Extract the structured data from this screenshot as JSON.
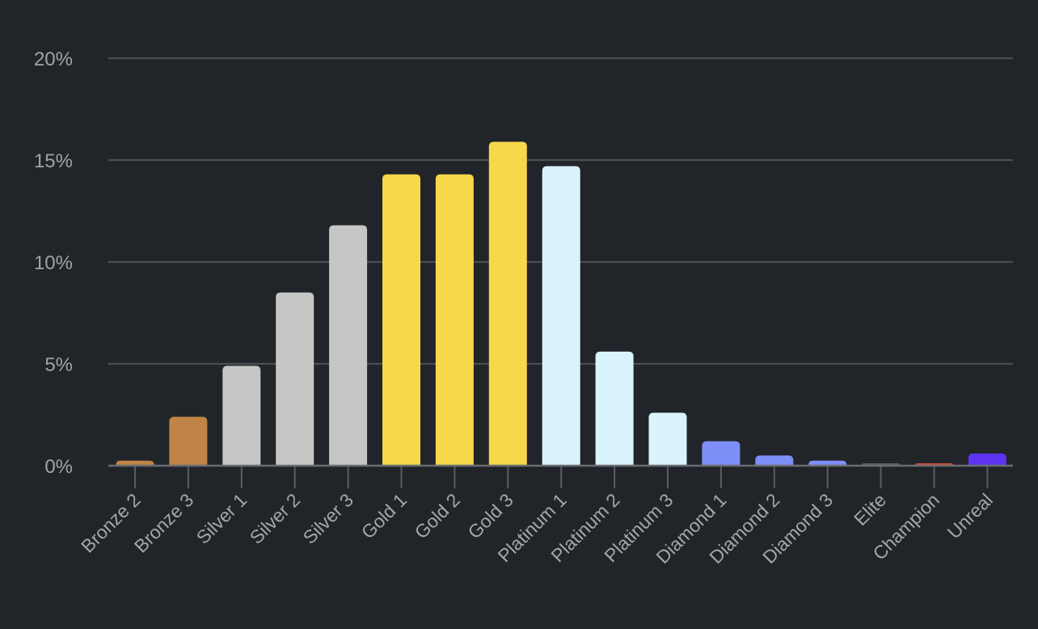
{
  "chart_data": {
    "type": "bar",
    "title": "",
    "xlabel": "",
    "ylabel": "",
    "ylim": [
      0,
      20
    ],
    "y_ticks": [
      0,
      5,
      10,
      15,
      20
    ],
    "y_tick_labels": [
      "0%",
      "5%",
      "10%",
      "15%",
      "20%"
    ],
    "grid": true,
    "categories": [
      "Bronze 2",
      "Bronze 3",
      "Silver 1",
      "Silver 2",
      "Silver 3",
      "Gold 1",
      "Gold 2",
      "Gold 3",
      "Platinum 1",
      "Platinum 2",
      "Platinum 3",
      "Diamond 1",
      "Diamond 2",
      "Diamond 3",
      "Elite",
      "Champion",
      "Unreal"
    ],
    "values": [
      0.25,
      2.4,
      4.9,
      8.5,
      11.8,
      14.3,
      14.3,
      15.9,
      14.7,
      5.6,
      2.6,
      1.2,
      0.5,
      0.25,
      0.1,
      0.12,
      0.6
    ],
    "colors": [
      "#c08446",
      "#c08446",
      "#c6c6c6",
      "#c6c6c6",
      "#c6c6c6",
      "#f7d84a",
      "#f7d84a",
      "#f7d84a",
      "#d9f4fd",
      "#d9f4fd",
      "#d9f4fd",
      "#7f8ff8",
      "#7f8ff8",
      "#7f8ff8",
      "#5c5d60",
      "#cf4b33",
      "#5d33f1"
    ]
  }
}
